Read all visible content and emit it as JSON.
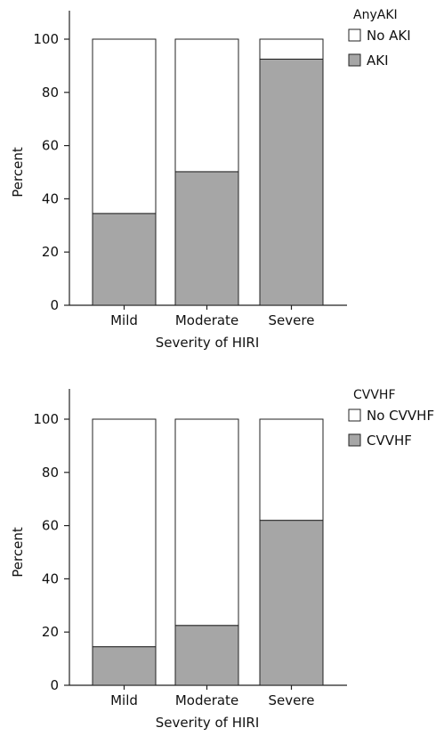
{
  "colors": {
    "AKI": "#a6a6a6",
    "No AKI": "#ffffff",
    "CVVHF": "#a6a6a6",
    "No CVVHF": "#ffffff",
    "stroke": "#222222"
  },
  "chart_data": [
    {
      "type": "bar",
      "stacked": true,
      "categories": [
        "Mild",
        "Moderate",
        "Severe"
      ],
      "series": [
        {
          "name": "AKI",
          "values": [
            34.5,
            50.2,
            92.5
          ]
        },
        {
          "name": "No AKI",
          "values": [
            65.5,
            49.8,
            7.5
          ]
        }
      ],
      "xlabel": "Severity of HIRI",
      "ylabel": "Percent",
      "ylim": [
        0,
        100
      ],
      "yticks": [
        0,
        20,
        40,
        60,
        80,
        100
      ],
      "legend": {
        "title": "AnyAKI",
        "position": "right",
        "entries": [
          "No AKI",
          "AKI"
        ]
      },
      "grid": false
    },
    {
      "type": "bar",
      "stacked": true,
      "categories": [
        "Mild",
        "Moderate",
        "Severe"
      ],
      "series": [
        {
          "name": "CVVHF",
          "values": [
            14.5,
            22.5,
            62.0
          ]
        },
        {
          "name": "No CVVHF",
          "values": [
            85.5,
            77.5,
            38.0
          ]
        }
      ],
      "xlabel": "Severity of HIRI",
      "ylabel": "Percent",
      "ylim": [
        0,
        100
      ],
      "yticks": [
        0,
        20,
        40,
        60,
        80,
        100
      ],
      "legend": {
        "title": "CVVHF",
        "position": "right",
        "entries": [
          "No CVVHF",
          "CVVHF"
        ]
      },
      "grid": false
    }
  ]
}
